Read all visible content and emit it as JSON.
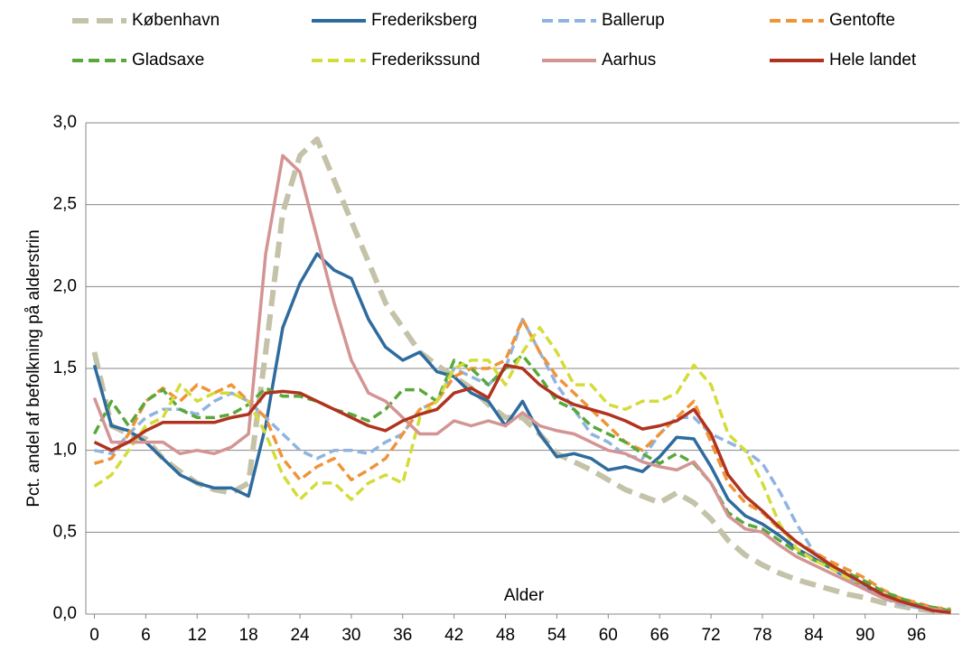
{
  "chart_data": {
    "type": "line",
    "x_label": "Alder",
    "y_label": "Pct. andel af befolkning på alderstrin",
    "x": [
      0,
      2,
      4,
      6,
      8,
      10,
      12,
      14,
      16,
      18,
      20,
      22,
      24,
      26,
      28,
      30,
      32,
      34,
      36,
      38,
      40,
      42,
      44,
      46,
      48,
      50,
      52,
      54,
      56,
      58,
      60,
      62,
      64,
      66,
      68,
      70,
      72,
      74,
      76,
      78,
      80,
      82,
      84,
      86,
      88,
      90,
      92,
      94,
      96,
      98,
      100
    ],
    "xlim": [
      -1,
      101
    ],
    "xticks": [
      0,
      6,
      12,
      18,
      24,
      30,
      36,
      42,
      48,
      54,
      60,
      66,
      72,
      78,
      84,
      90,
      96
    ],
    "ylim": [
      0,
      3
    ],
    "yticks": [
      {
        "value": 0,
        "label": "0,0"
      },
      {
        "value": 0.5,
        "label": "0,5"
      },
      {
        "value": 1,
        "label": "1,0"
      },
      {
        "value": 1.5,
        "label": "1,5"
      },
      {
        "value": 2,
        "label": "2,0"
      },
      {
        "value": 2.5,
        "label": "2,5"
      },
      {
        "value": 3,
        "label": "3,0"
      }
    ],
    "grid": true,
    "legend": "top",
    "series": [
      {
        "name": "København",
        "color": "#c4c2a8",
        "dashed": true,
        "values": [
          1.6,
          1.15,
          1.1,
          1.07,
          0.95,
          0.87,
          0.8,
          0.76,
          0.74,
          0.8,
          1.6,
          2.45,
          2.8,
          2.9,
          2.65,
          2.4,
          2.15,
          1.9,
          1.75,
          1.6,
          1.52,
          1.45,
          1.38,
          1.28,
          1.2,
          1.2,
          1.1,
          0.98,
          0.93,
          0.88,
          0.82,
          0.76,
          0.72,
          0.68,
          0.74,
          0.68,
          0.58,
          0.45,
          0.36,
          0.3,
          0.25,
          0.21,
          0.18,
          0.15,
          0.12,
          0.1,
          0.07,
          0.05,
          0.03,
          0.02,
          0.01
        ]
      },
      {
        "name": "Frederiksberg",
        "color": "#2e6b9e",
        "dashed": false,
        "values": [
          1.52,
          1.15,
          1.12,
          1.05,
          0.95,
          0.85,
          0.8,
          0.77,
          0.77,
          0.72,
          1.15,
          1.75,
          2.02,
          2.2,
          2.1,
          2.05,
          1.8,
          1.63,
          1.55,
          1.6,
          1.48,
          1.45,
          1.35,
          1.3,
          1.15,
          1.3,
          1.1,
          0.96,
          0.98,
          0.95,
          0.88,
          0.9,
          0.87,
          0.96,
          1.08,
          1.07,
          0.9,
          0.7,
          0.6,
          0.55,
          0.48,
          0.4,
          0.34,
          0.28,
          0.22,
          0.17,
          0.12,
          0.09,
          0.06,
          0.03,
          0.02
        ]
      },
      {
        "name": "Ballerup",
        "color": "#8fb4e0",
        "dashed": true,
        "values": [
          1.0,
          0.98,
          1.1,
          1.2,
          1.25,
          1.25,
          1.22,
          1.3,
          1.35,
          1.3,
          1.2,
          1.1,
          1.0,
          0.95,
          1.0,
          1.0,
          0.98,
          1.05,
          1.1,
          1.25,
          1.3,
          1.5,
          1.45,
          1.4,
          1.5,
          1.8,
          1.6,
          1.4,
          1.25,
          1.1,
          1.05,
          0.97,
          0.95,
          1.1,
          1.2,
          1.2,
          1.1,
          1.05,
          1.0,
          0.92,
          0.75,
          0.55,
          0.38,
          0.3,
          0.22,
          0.16,
          0.1,
          0.06,
          0.04,
          0.02,
          0.01
        ]
      },
      {
        "name": "Gentofte",
        "color": "#f0943a",
        "dashed": true,
        "values": [
          0.92,
          0.95,
          1.1,
          1.3,
          1.38,
          1.3,
          1.4,
          1.35,
          1.4,
          1.3,
          1.2,
          0.95,
          0.82,
          0.9,
          0.95,
          0.82,
          0.88,
          0.95,
          1.1,
          1.25,
          1.3,
          1.45,
          1.5,
          1.5,
          1.55,
          1.8,
          1.6,
          1.45,
          1.35,
          1.25,
          1.15,
          1.05,
          1.0,
          1.1,
          1.2,
          1.3,
          1.05,
          0.8,
          0.68,
          0.62,
          0.52,
          0.44,
          0.38,
          0.32,
          0.27,
          0.22,
          0.15,
          0.1,
          0.07,
          0.04,
          0.03
        ]
      },
      {
        "name": "Gladsaxe",
        "color": "#5aa83c",
        "dashed": true,
        "values": [
          1.1,
          1.3,
          1.15,
          1.3,
          1.37,
          1.25,
          1.2,
          1.2,
          1.22,
          1.28,
          1.38,
          1.33,
          1.33,
          1.3,
          1.25,
          1.22,
          1.18,
          1.25,
          1.37,
          1.37,
          1.3,
          1.55,
          1.5,
          1.4,
          1.5,
          1.58,
          1.45,
          1.3,
          1.25,
          1.15,
          1.1,
          1.05,
          0.98,
          0.92,
          0.98,
          0.92,
          0.8,
          0.62,
          0.55,
          0.52,
          0.45,
          0.38,
          0.33,
          0.29,
          0.25,
          0.2,
          0.14,
          0.1,
          0.06,
          0.04,
          0.02
        ]
      },
      {
        "name": "Frederikssund",
        "color": "#d4dc3a",
        "dashed": true,
        "values": [
          0.78,
          0.85,
          1.0,
          1.15,
          1.2,
          1.4,
          1.3,
          1.35,
          1.35,
          1.3,
          1.1,
          0.85,
          0.7,
          0.8,
          0.8,
          0.7,
          0.8,
          0.85,
          0.8,
          1.2,
          1.3,
          1.5,
          1.55,
          1.55,
          1.4,
          1.6,
          1.75,
          1.6,
          1.4,
          1.4,
          1.28,
          1.25,
          1.3,
          1.3,
          1.35,
          1.52,
          1.4,
          1.1,
          1.0,
          0.8,
          0.55,
          0.4,
          0.33,
          0.28,
          0.22,
          0.18,
          0.12,
          0.08,
          0.05,
          0.03,
          0.01
        ]
      },
      {
        "name": "Aarhus",
        "color": "#d49494",
        "dashed": false,
        "values": [
          1.32,
          1.05,
          1.05,
          1.05,
          1.05,
          0.98,
          1.0,
          0.98,
          1.02,
          1.1,
          2.2,
          2.8,
          2.7,
          2.3,
          1.9,
          1.55,
          1.35,
          1.3,
          1.2,
          1.1,
          1.1,
          1.18,
          1.15,
          1.18,
          1.15,
          1.23,
          1.15,
          1.12,
          1.1,
          1.05,
          1.0,
          0.98,
          0.93,
          0.9,
          0.88,
          0.93,
          0.8,
          0.6,
          0.52,
          0.5,
          0.42,
          0.35,
          0.3,
          0.25,
          0.2,
          0.15,
          0.1,
          0.07,
          0.05,
          0.03,
          0.01
        ]
      },
      {
        "name": "Hele landet",
        "color": "#b0331f",
        "dashed": false,
        "values": [
          1.05,
          1.0,
          1.05,
          1.12,
          1.17,
          1.17,
          1.17,
          1.17,
          1.2,
          1.22,
          1.35,
          1.36,
          1.35,
          1.3,
          1.25,
          1.2,
          1.15,
          1.12,
          1.18,
          1.22,
          1.25,
          1.35,
          1.38,
          1.32,
          1.52,
          1.5,
          1.4,
          1.33,
          1.28,
          1.25,
          1.22,
          1.18,
          1.13,
          1.15,
          1.18,
          1.25,
          1.1,
          0.85,
          0.72,
          0.63,
          0.53,
          0.44,
          0.37,
          0.3,
          0.24,
          0.18,
          0.12,
          0.08,
          0.05,
          0.02,
          0.01
        ]
      }
    ]
  }
}
